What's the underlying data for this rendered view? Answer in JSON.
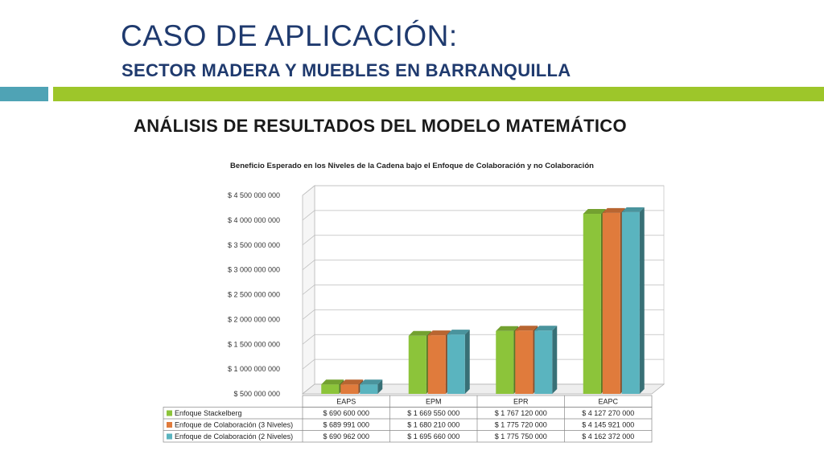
{
  "header": {
    "title": "CASO DE APLICACIÓN:",
    "subtitle": "SECTOR MADERA Y MUEBLES EN BARRANQUILLA",
    "section_title": "ANÁLISIS DE RESULTADOS DEL MODELO MATEMÁTICO"
  },
  "colors": {
    "accent_teal": "#4fa3b5",
    "accent_green": "#9dc62a",
    "title_blue": "#1f3a6e"
  },
  "chart_data": {
    "type": "bar",
    "title": "Beneficio Esperado en los Niveles de la Cadena bajo el Enfoque de Colaboración y no Colaboración",
    "categories": [
      "EAPS",
      "EPM",
      "EPR",
      "EAPC"
    ],
    "ylim": [
      500000000,
      4500000000
    ],
    "yticks": [
      500000000,
      1000000000,
      1500000000,
      2000000000,
      2500000000,
      3000000000,
      3500000000,
      4000000000,
      4500000000
    ],
    "ytick_labels": [
      "$ 500 000 000",
      "$ 1 000 000 000",
      "$ 1 500 000 000",
      "$ 2 000 000 000",
      "$ 2 500 000 000",
      "$ 3 000 000 000",
      "$ 3 500 000 000",
      "$ 4 000 000 000",
      "$ 4 500 000 000"
    ],
    "grid": true,
    "legend": "data-table-bottom",
    "series": [
      {
        "name": "Enfoque Stackelberg",
        "color": "#8cc43a",
        "values": [
          690600000,
          1669550000,
          1767120000,
          4127270000
        ],
        "labels": [
          "$ 690 600 000",
          "$ 1 669 550 000",
          "$ 1 767 120 000",
          "$ 4 127 270 000"
        ]
      },
      {
        "name": "Enfoque de Colaboración (3 Niveles)",
        "color": "#e07b3c",
        "values": [
          689991000,
          1680210000,
          1775720000,
          4145921000
        ],
        "labels": [
          "$ 689 991 000",
          "$ 1 680 210 000",
          "$ 1 775 720 000",
          "$ 4 145 921 000"
        ]
      },
      {
        "name": "Enfoque de Colaboración (2 Niveles)",
        "color": "#5ab4bf",
        "values": [
          690962000,
          1695660000,
          1775750000,
          4162372000
        ],
        "labels": [
          "$ 690 962 000",
          "$ 1 695 660 000",
          "$ 1 775 750 000",
          "$ 4 162 372 000"
        ]
      }
    ]
  }
}
